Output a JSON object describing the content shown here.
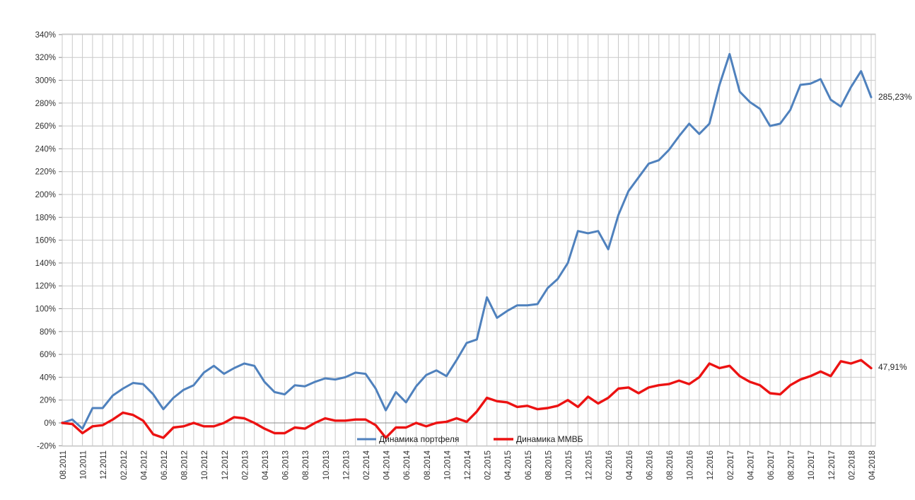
{
  "chart_data": {
    "type": "line",
    "title": "",
    "xlabel": "",
    "ylabel": "",
    "ylim": [
      -20,
      340
    ],
    "y_tick_step": 20,
    "y_tick_labels": [
      "-20%",
      "0%",
      "20%",
      "40%",
      "60%",
      "80%",
      "100%",
      "120%",
      "140%",
      "160%",
      "180%",
      "200%",
      "220%",
      "240%",
      "260%",
      "280%",
      "300%",
      "320%",
      "340%"
    ],
    "x_tick_labels": [
      "08.2011",
      "10.2011",
      "12.2011",
      "02.2012",
      "04.2012",
      "06.2012",
      "08.2012",
      "10.2012",
      "12.2012",
      "02.2013",
      "04.2013",
      "06.2013",
      "08.2013",
      "10.2013",
      "12.2013",
      "02.2014",
      "04.2014",
      "06.2014",
      "08.2014",
      "10.2014",
      "12.2014",
      "02.2015",
      "04.2015",
      "06.2015",
      "08.2015",
      "10.2015",
      "12.2015",
      "02.2016",
      "04.2016",
      "06.2016",
      "08.2016",
      "10.2016",
      "12.2016",
      "02.2017",
      "04.2017",
      "06.2017",
      "08.2017",
      "10.2017",
      "12.2017",
      "02.2018",
      "04.2018"
    ],
    "x_tick_every_n_months": 2,
    "grid": true,
    "gridline_color": "#c9c9c9",
    "zero_line_color": "#8c8c8c",
    "legend_position": "inside-bottom",
    "series": [
      {
        "name": "Динамика портфеля",
        "color": "#4f81bd",
        "line_width": 3,
        "end_label": "285,23%",
        "values": [
          0,
          3,
          -5,
          13,
          13,
          24,
          30,
          35,
          34,
          25,
          12,
          22,
          29,
          33,
          44,
          50,
          43,
          48,
          52,
          50,
          36,
          27,
          25,
          33,
          32,
          36,
          39,
          38,
          40,
          44,
          43,
          30,
          11,
          27,
          18,
          32,
          42,
          46,
          41,
          55,
          70,
          73,
          110,
          92,
          98,
          103,
          103,
          104,
          118,
          126,
          140,
          168,
          166,
          168,
          152,
          182,
          203,
          215,
          227,
          230,
          239,
          251,
          262,
          253,
          262,
          296,
          323,
          290,
          281,
          275,
          260,
          262,
          274,
          296,
          297,
          301,
          283,
          277,
          294,
          308,
          285.23
        ]
      },
      {
        "name": "Динамика ММВБ",
        "color": "#ec1212",
        "line_width": 3.4,
        "end_label": "47,91%",
        "values": [
          0,
          -1,
          -9,
          -3,
          -2,
          3,
          9,
          7,
          2,
          -10,
          -13,
          -4,
          -3,
          0,
          -3,
          -3,
          0,
          5,
          4,
          0,
          -5,
          -9,
          -9,
          -4,
          -5,
          0,
          4,
          2,
          2,
          3,
          3,
          -2,
          -13,
          -4,
          -4,
          0,
          -3,
          0,
          1,
          4,
          1,
          10,
          22,
          19,
          18,
          14,
          15,
          12,
          13,
          15,
          20,
          14,
          23,
          17,
          22,
          30,
          31,
          26,
          31,
          33,
          34,
          37,
          34,
          40,
          52,
          48,
          50,
          41,
          36,
          33,
          26,
          25,
          33,
          38,
          41,
          45,
          41,
          54,
          52,
          55,
          47.91
        ]
      }
    ]
  },
  "legend": {
    "item1": "Динамика портфеля",
    "item2": "Динамика ММВБ"
  },
  "end_labels": {
    "portfolio": "285,23%",
    "micex": "47,91%"
  }
}
